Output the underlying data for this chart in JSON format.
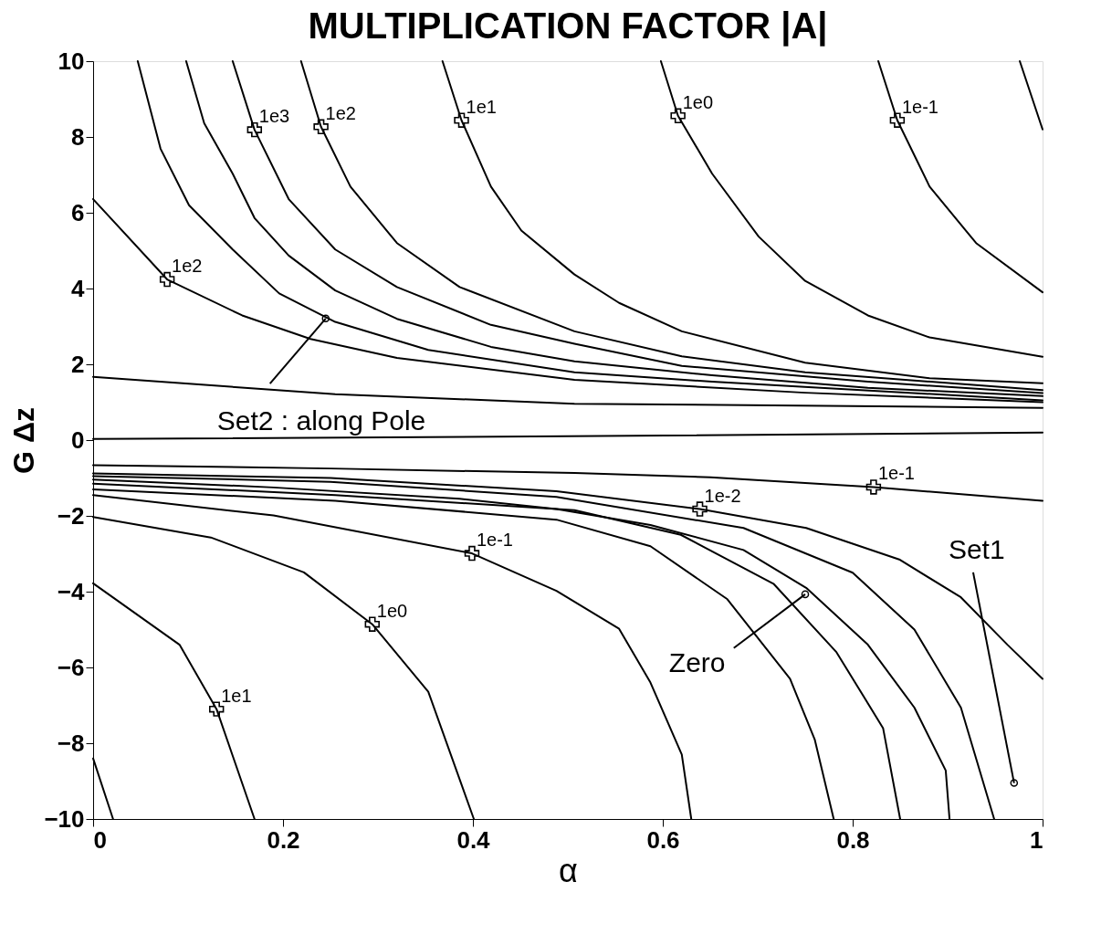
{
  "chart_data": {
    "type": "line",
    "title": "MULTIPLICATION FACTOR |A|",
    "xlabel": "α",
    "ylabel": "G Δz",
    "xlim": [
      0,
      1
    ],
    "ylim": [
      -10,
      10
    ],
    "xticks": [
      0,
      0.2,
      0.4,
      0.6,
      0.8,
      1
    ],
    "yticks": [
      -10,
      -8,
      -6,
      -4,
      -2,
      0,
      2,
      4,
      6,
      8,
      10
    ],
    "grid": false,
    "line_style": "solid",
    "series": [
      {
        "color": "#000000",
        "x": [
          0.976,
          1.0
        ],
        "values": [
          10,
          8.2
        ]
      },
      {
        "color": "#000000",
        "x": [
          0.827,
          0.847,
          0.881,
          0.93,
          1.0
        ],
        "values": [
          10,
          8.44,
          6.69,
          5.2,
          3.9
        ]
      },
      {
        "color": "#000000",
        "x": [
          0.598,
          0.616,
          0.652,
          0.701,
          0.75,
          0.816,
          0.881,
          1.0
        ],
        "values": [
          10,
          8.56,
          7.03,
          5.37,
          4.2,
          3.29,
          2.71,
          2.2
        ]
      },
      {
        "color": "#000000",
        "x": [
          0.368,
          0.388,
          0.419,
          0.451,
          0.507,
          0.554,
          0.62,
          0.75,
          0.881,
          1.0
        ],
        "values": [
          10,
          8.44,
          6.69,
          5.53,
          4.37,
          3.62,
          2.87,
          2.04,
          1.63,
          1.5
        ]
      },
      {
        "color": "#000000",
        "x": [
          0.219,
          0.24,
          0.271,
          0.32,
          0.386,
          0.507,
          0.62,
          0.75,
          1.0
        ],
        "values": [
          10,
          8.27,
          6.69,
          5.2,
          4.04,
          2.87,
          2.21,
          1.79,
          1.32
        ]
      },
      {
        "color": "#000000",
        "x": [
          0.147,
          0.17,
          0.206,
          0.255,
          0.32,
          0.419,
          0.507,
          0.62,
          0.816,
          1.0
        ],
        "values": [
          10,
          8.19,
          6.36,
          5.03,
          4.04,
          3.04,
          2.54,
          1.96,
          1.54,
          1.24
        ]
      },
      {
        "color": "#000000",
        "x": [
          0.098,
          0.117,
          0.147,
          0.17,
          0.206,
          0.255,
          0.32,
          0.419,
          0.507,
          0.652,
          0.816,
          1.0
        ],
        "values": [
          10,
          8.36,
          7.03,
          5.86,
          4.87,
          3.95,
          3.2,
          2.46,
          2.08,
          1.71,
          1.38,
          1.16
        ]
      },
      {
        "color": "#000000",
        "x": [
          0.047,
          0.071,
          0.101,
          0.147,
          0.196,
          0.255,
          0.353,
          0.507,
          0.652,
          1.0
        ],
        "values": [
          10,
          7.69,
          6.2,
          5.03,
          3.87,
          3.12,
          2.38,
          1.79,
          1.54,
          1.05
        ]
      },
      {
        "color": "#000000",
        "x": [
          0,
          0.078,
          0.157,
          0.229,
          0.32,
          0.507,
          0.75,
          1.0
        ],
        "values": [
          6.36,
          4.24,
          3.29,
          2.67,
          2.17,
          1.59,
          1.25,
          1.0
        ]
      },
      {
        "color": "#000000",
        "x": [
          0,
          0.255,
          0.507,
          1.0
        ],
        "values": [
          1.67,
          1.21,
          0.96,
          0.85
        ]
      },
      {
        "color": "#000000",
        "x": [
          0,
          0.5,
          1.0
        ],
        "values": [
          0.03,
          0.1,
          0.2
        ]
      },
      {
        "color": "#000000",
        "x": [
          0,
          0.25,
          0.507,
          0.65,
          0.822,
          1.0
        ],
        "values": [
          -0.66,
          -0.75,
          -0.87,
          -0.98,
          -1.24,
          -1.6
        ]
      },
      {
        "color": "#000000",
        "x": [
          0,
          0.25,
          0.488,
          0.639,
          0.751,
          0.849,
          0.914,
          0.963,
          1.0
        ],
        "values": [
          -0.88,
          -1.0,
          -1.35,
          -1.82,
          -2.32,
          -3.15,
          -4.15,
          -5.4,
          -6.3
        ]
      },
      {
        "color": "#000000",
        "x": [
          0,
          0.25,
          0.488,
          0.685,
          0.8,
          0.865,
          0.914,
          0.949
        ],
        "values": [
          -0.95,
          -1.1,
          -1.5,
          -2.32,
          -3.5,
          -5.0,
          -7.06,
          -10
        ]
      },
      {
        "color": "#000000",
        "x": [
          0,
          0.19,
          0.386,
          0.488,
          0.587,
          0.685,
          0.751,
          0.816,
          0.865,
          0.898,
          0.902
        ],
        "values": [
          -1.04,
          -1.25,
          -1.55,
          -1.82,
          -2.24,
          -2.9,
          -3.9,
          -5.4,
          -7.06,
          -8.72,
          -10
        ]
      },
      {
        "color": "#000000",
        "x": [
          0,
          0.255,
          0.507,
          0.619,
          0.717,
          0.783,
          0.832,
          0.85
        ],
        "values": [
          -1.15,
          -1.45,
          -1.85,
          -2.5,
          -3.8,
          -5.6,
          -7.6,
          -10
        ]
      },
      {
        "color": "#000000",
        "x": [
          0,
          0.255,
          0.488,
          0.587,
          0.668,
          0.734,
          0.76,
          0.78
        ],
        "values": [
          -1.3,
          -1.6,
          -2.1,
          -2.8,
          -4.2,
          -6.3,
          -7.9,
          -10
        ]
      },
      {
        "color": "#000000",
        "x": [
          0,
          0.19,
          0.399,
          0.488,
          0.554,
          0.587,
          0.62,
          0.63
        ],
        "values": [
          -1.45,
          -1.99,
          -2.99,
          -3.98,
          -4.98,
          -6.4,
          -8.3,
          -10
        ]
      },
      {
        "color": "#000000",
        "x": [
          0,
          0.124,
          0.222,
          0.294,
          0.353,
          0.401
        ],
        "values": [
          -2.03,
          -2.57,
          -3.49,
          -4.86,
          -6.64,
          -10
        ]
      },
      {
        "color": "#000000",
        "x": [
          0,
          0.091,
          0.13,
          0.17
        ],
        "values": [
          -3.78,
          -5.4,
          -7.1,
          -10
        ]
      },
      {
        "color": "#000000",
        "x": [
          0,
          0.021
        ],
        "values": [
          -8.4,
          -10
        ]
      }
    ],
    "annotations": [
      {
        "text": "1e3",
        "x": 0.17,
        "y": 8.19
      },
      {
        "text": "1e2",
        "x": 0.24,
        "y": 8.27
      },
      {
        "text": "1e1",
        "x": 0.388,
        "y": 8.44
      },
      {
        "text": "1e0",
        "x": 0.616,
        "y": 8.56
      },
      {
        "text": "1e-1",
        "x": 0.847,
        "y": 8.44
      },
      {
        "text": "1e2",
        "x": 0.078,
        "y": 4.24
      },
      {
        "text": "1e-1",
        "x": 0.822,
        "y": -1.24
      },
      {
        "text": "1e-2",
        "x": 0.639,
        "y": -1.82
      },
      {
        "text": "1e-1",
        "x": 0.399,
        "y": -2.99
      },
      {
        "text": "1e0",
        "x": 0.294,
        "y": -4.86
      },
      {
        "text": "1e1",
        "x": 0.13,
        "y": -7.1
      },
      {
        "text": "Set2 : along Pole",
        "x": 0.245,
        "y": 3.21
      },
      {
        "text": "Zero",
        "x": 0.75,
        "y": -4.07
      },
      {
        "text": "Set1",
        "x": 0.97,
        "y": -9.05
      }
    ]
  }
}
